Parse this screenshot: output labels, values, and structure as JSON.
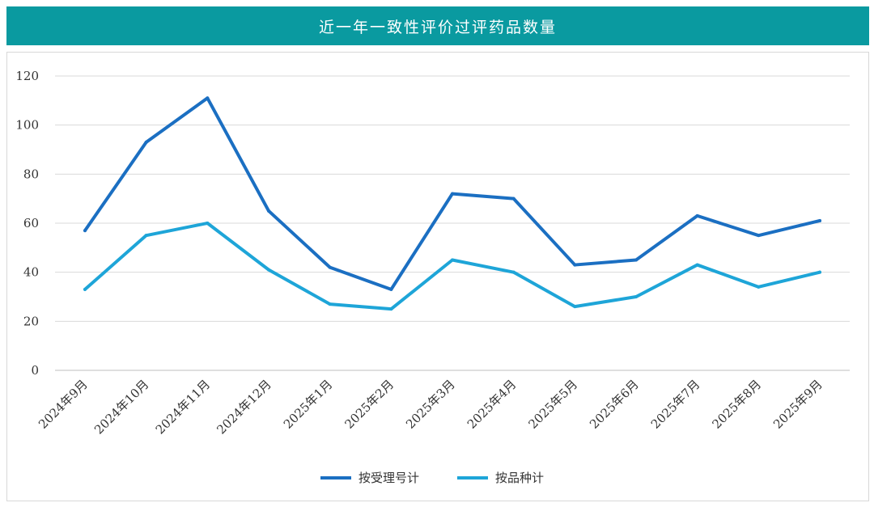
{
  "chart_data": {
    "type": "line",
    "title": "近一年一致性评价过评药品数量",
    "categories": [
      "2024年9月",
      "2024年10月",
      "2024年11月",
      "2024年12月",
      "2025年1月",
      "2025年2月",
      "2025年3月",
      "2025年4月",
      "2025年5月",
      "2025年6月",
      "2025年7月",
      "2025年8月",
      "2025年9月"
    ],
    "series": [
      {
        "name": "按受理号计",
        "color": "#1b6fc2",
        "values": [
          57,
          93,
          111,
          65,
          42,
          33,
          72,
          70,
          43,
          45,
          63,
          55,
          61
        ]
      },
      {
        "name": "按品种计",
        "color": "#1ea5d8",
        "values": [
          33,
          55,
          60,
          41,
          27,
          25,
          45,
          40,
          26,
          30,
          43,
          34,
          40
        ]
      }
    ],
    "ylim": [
      0,
      120
    ],
    "yticks": [
      0,
      20,
      40,
      60,
      80,
      100,
      120
    ],
    "grid": true,
    "legend": "bottom",
    "header_color": "#0a9aa0"
  }
}
